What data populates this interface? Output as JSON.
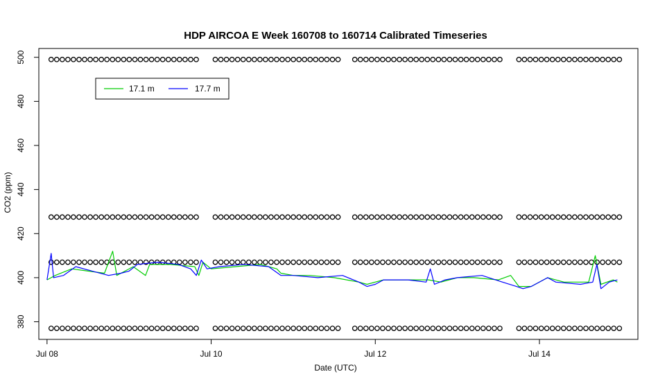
{
  "chart_data": {
    "type": "line",
    "title": "HDP AIRCOA E  Week 160708 to 160714  Calibrated Timeseries",
    "xlabel": "Date (UTC)",
    "ylabel": "CO2 (ppm)",
    "xlim": [
      -0.1,
      7.2
    ],
    "ylim": [
      372,
      504
    ],
    "x_ticks": [
      {
        "value": 0,
        "label": "Jul 08"
      },
      {
        "value": 2,
        "label": "Jul 10"
      },
      {
        "value": 4,
        "label": "Jul 12"
      },
      {
        "value": 6,
        "label": "Jul 14"
      }
    ],
    "y_ticks": [
      380,
      400,
      420,
      440,
      460,
      480,
      500
    ],
    "grid": false,
    "legend_position": "top-left",
    "series": [
      {
        "name": "17.1 m",
        "color": "#00cc00",
        "points": [
          [
            0.0,
            399
          ],
          [
            0.1,
            401
          ],
          [
            0.3,
            404
          ],
          [
            0.5,
            403
          ],
          [
            0.7,
            402
          ],
          [
            0.8,
            412
          ],
          [
            0.85,
            401
          ],
          [
            0.95,
            403
          ],
          [
            1.05,
            405
          ],
          [
            1.2,
            401
          ],
          [
            1.25,
            406
          ],
          [
            1.5,
            406
          ],
          [
            1.8,
            405
          ],
          [
            1.85,
            401
          ],
          [
            1.9,
            407
          ],
          [
            2.0,
            404
          ],
          [
            2.3,
            405
          ],
          [
            2.6,
            406
          ],
          [
            2.8,
            404
          ],
          [
            2.85,
            402
          ],
          [
            3.0,
            401
          ],
          [
            3.2,
            401
          ],
          [
            3.5,
            400
          ],
          [
            3.8,
            398
          ],
          [
            3.9,
            397
          ],
          [
            4.1,
            399
          ],
          [
            4.3,
            399
          ],
          [
            4.65,
            399
          ],
          [
            4.8,
            398
          ],
          [
            5.0,
            400
          ],
          [
            5.2,
            400
          ],
          [
            5.5,
            399
          ],
          [
            5.65,
            401
          ],
          [
            5.75,
            396
          ],
          [
            5.9,
            396
          ],
          [
            6.1,
            400
          ],
          [
            6.3,
            398
          ],
          [
            6.6,
            398
          ],
          [
            6.68,
            410
          ],
          [
            6.75,
            397
          ],
          [
            6.9,
            399
          ],
          [
            6.95,
            398
          ]
        ]
      },
      {
        "name": "17.7 m",
        "color": "#0000ff",
        "points": [
          [
            0.0,
            399
          ],
          [
            0.05,
            411
          ],
          [
            0.08,
            400
          ],
          [
            0.2,
            401
          ],
          [
            0.35,
            405
          ],
          [
            0.55,
            403
          ],
          [
            0.75,
            401
          ],
          [
            0.9,
            402
          ],
          [
            1.0,
            403
          ],
          [
            1.1,
            406
          ],
          [
            1.35,
            407
          ],
          [
            1.6,
            406
          ],
          [
            1.75,
            404
          ],
          [
            1.82,
            401
          ],
          [
            1.88,
            408
          ],
          [
            1.95,
            404
          ],
          [
            2.1,
            405
          ],
          [
            2.4,
            406
          ],
          [
            2.7,
            405
          ],
          [
            2.85,
            401
          ],
          [
            3.0,
            401
          ],
          [
            3.3,
            400
          ],
          [
            3.6,
            401
          ],
          [
            3.8,
            398
          ],
          [
            3.9,
            396
          ],
          [
            4.0,
            397
          ],
          [
            4.1,
            399
          ],
          [
            4.4,
            399
          ],
          [
            4.62,
            398
          ],
          [
            4.67,
            404
          ],
          [
            4.72,
            397
          ],
          [
            4.85,
            399
          ],
          [
            5.0,
            400
          ],
          [
            5.3,
            401
          ],
          [
            5.55,
            398
          ],
          [
            5.72,
            396
          ],
          [
            5.8,
            395
          ],
          [
            5.9,
            396
          ],
          [
            6.1,
            400
          ],
          [
            6.2,
            398
          ],
          [
            6.5,
            397
          ],
          [
            6.65,
            398
          ],
          [
            6.7,
            406
          ],
          [
            6.75,
            395
          ],
          [
            6.85,
            398
          ],
          [
            6.95,
            399
          ]
        ]
      }
    ],
    "calibration_markers": {
      "levels": [
        499,
        427.5,
        407,
        377
      ],
      "segments": [
        [
          0.05,
          1.86
        ],
        [
          2.05,
          3.58
        ],
        [
          3.75,
          5.55
        ],
        [
          5.75,
          6.98
        ]
      ],
      "spacing_days": 0.068
    }
  }
}
